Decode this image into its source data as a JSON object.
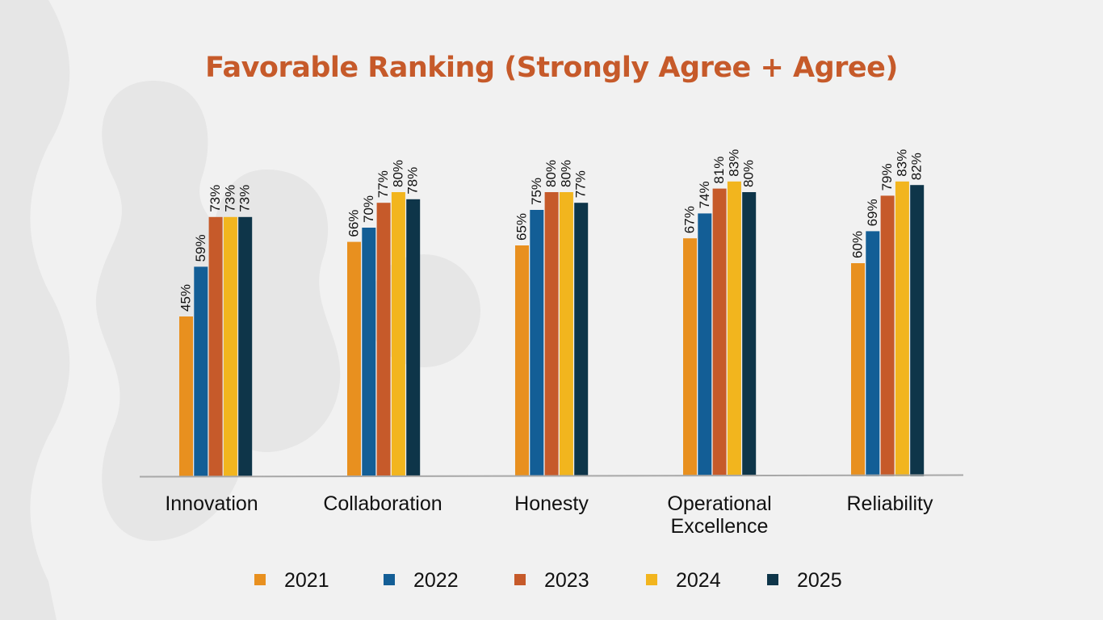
{
  "chart_data": {
    "type": "bar",
    "title": "Favorable Ranking (Strongly Agree + Agree)",
    "xlabel": "",
    "ylabel": "",
    "ylim": [
      0,
      100
    ],
    "grid": false,
    "legend_position": "bottom",
    "categories": [
      [
        "Innovation"
      ],
      [
        "Collaboration"
      ],
      [
        "Honesty"
      ],
      [
        "Operational",
        "Excellence"
      ],
      [
        "Reliability"
      ]
    ],
    "series": [
      {
        "name": "2021",
        "color": "#e8901f",
        "values": [
          45,
          66,
          65,
          67,
          60
        ],
        "labels": [
          "45%",
          "66%",
          "65%",
          "67%",
          "60%"
        ]
      },
      {
        "name": "2022",
        "color": "#135e96",
        "values": [
          59,
          70,
          75,
          74,
          69
        ],
        "labels": [
          "59%",
          "70%",
          "75%",
          "74%",
          "69%"
        ]
      },
      {
        "name": "2023",
        "color": "#c65a2a",
        "values": [
          73,
          77,
          80,
          81,
          79
        ],
        "labels": [
          "73%",
          "77%",
          "80%",
          "81%",
          "79%"
        ]
      },
      {
        "name": "2024",
        "color": "#f2b51e",
        "values": [
          73,
          80,
          80,
          83,
          83
        ],
        "labels": [
          "73%",
          "80%",
          "80%",
          "83%",
          "83%"
        ]
      },
      {
        "name": "2025",
        "color": "#0e3549",
        "values": [
          73,
          78,
          77,
          80,
          82
        ],
        "labels": [
          "73%",
          "78%",
          "77%",
          "80%",
          "82%"
        ]
      }
    ]
  },
  "colors": {
    "title": "#c65a2a",
    "axis": "#a8a8a8",
    "background": "#f1f1f1",
    "decoration": "#e6e6e6"
  }
}
